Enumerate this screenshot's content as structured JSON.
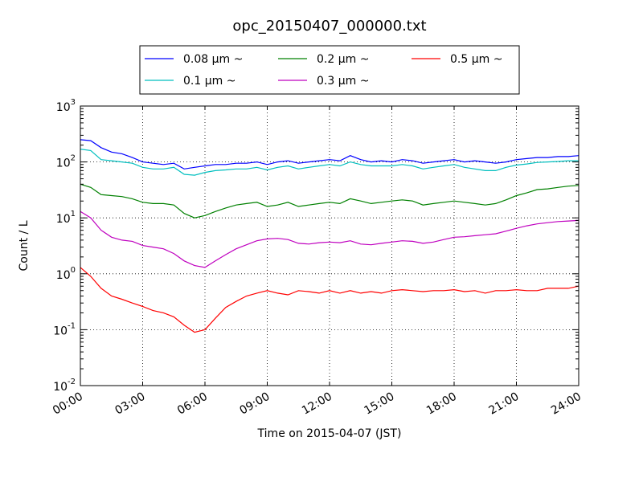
{
  "chart_data": {
    "type": "line",
    "title": "opc_20150407_000000.txt",
    "xlabel": "Time on 2015-04-07 (JST)",
    "ylabel": "Count / L",
    "yscale": "log",
    "ylim": [
      0.01,
      1000
    ],
    "xlim_hours": [
      0,
      24
    ],
    "x_ticks": [
      "00:00",
      "03:00",
      "06:00",
      "09:00",
      "12:00",
      "15:00",
      "18:00",
      "21:00",
      "24:00"
    ],
    "y_ticks": [
      {
        "base": "10",
        "exp": "-2"
      },
      {
        "base": "10",
        "exp": "-1"
      },
      {
        "base": "10",
        "exp": "0"
      },
      {
        "base": "10",
        "exp": "1"
      },
      {
        "base": "10",
        "exp": "2"
      },
      {
        "base": "10",
        "exp": "3"
      }
    ],
    "grid": true,
    "legend_position": "top-center",
    "x_hours": [
      0,
      0.5,
      1,
      1.5,
      2,
      2.5,
      3,
      3.5,
      4,
      4.5,
      5,
      5.5,
      6,
      6.5,
      7,
      7.5,
      8,
      8.5,
      9,
      9.5,
      10,
      10.5,
      11,
      11.5,
      12,
      12.5,
      13,
      13.5,
      14,
      14.5,
      15,
      15.5,
      16,
      16.5,
      17,
      17.5,
      18,
      18.5,
      19,
      19.5,
      20,
      20.5,
      21,
      21.5,
      22,
      22.5,
      23,
      23.5,
      24
    ],
    "series": [
      {
        "name": "0.08 μm ~",
        "color": "#0000ff",
        "values": [
          250,
          240,
          180,
          150,
          140,
          120,
          100,
          95,
          90,
          95,
          75,
          80,
          85,
          90,
          90,
          95,
          95,
          100,
          90,
          100,
          105,
          95,
          100,
          105,
          110,
          105,
          130,
          110,
          100,
          105,
          100,
          110,
          105,
          95,
          100,
          105,
          110,
          100,
          105,
          100,
          95,
          100,
          110,
          115,
          120,
          120,
          125,
          125,
          130
        ]
      },
      {
        "name": "0.1 μm ~",
        "color": "#00bfbf",
        "values": [
          170,
          160,
          110,
          105,
          100,
          95,
          80,
          75,
          75,
          80,
          60,
          58,
          65,
          70,
          72,
          75,
          75,
          80,
          72,
          80,
          85,
          75,
          80,
          85,
          90,
          85,
          100,
          90,
          85,
          85,
          85,
          90,
          85,
          75,
          80,
          85,
          90,
          80,
          75,
          70,
          70,
          80,
          88,
          92,
          98,
          100,
          102,
          105,
          105
        ]
      },
      {
        "name": "0.2 μm ~",
        "color": "#008000",
        "values": [
          40,
          35,
          26,
          25,
          24,
          22,
          19,
          18,
          18,
          17,
          12,
          10,
          11,
          13,
          15,
          17,
          18,
          19,
          16,
          17,
          19,
          16,
          17,
          18,
          19,
          18,
          22,
          20,
          18,
          19,
          20,
          21,
          20,
          17,
          18,
          19,
          20,
          19,
          18,
          17,
          18,
          21,
          25,
          28,
          32,
          33,
          35,
          37,
          38
        ]
      },
      {
        "name": "0.3 μm ~",
        "color": "#bf00bf",
        "values": [
          13,
          10,
          6,
          4.5,
          4,
          3.8,
          3.2,
          3,
          2.8,
          2.3,
          1.7,
          1.4,
          1.3,
          1.7,
          2.2,
          2.8,
          3.3,
          3.9,
          4.2,
          4.3,
          4.1,
          3.5,
          3.4,
          3.6,
          3.7,
          3.6,
          3.9,
          3.4,
          3.3,
          3.5,
          3.7,
          3.9,
          3.8,
          3.5,
          3.7,
          4.1,
          4.5,
          4.6,
          4.8,
          5,
          5.2,
          5.8,
          6.5,
          7.2,
          7.8,
          8.2,
          8.6,
          8.8,
          9
        ]
      },
      {
        "name": "0.5 μm ~",
        "color": "#ff0000",
        "values": [
          1.3,
          0.9,
          0.55,
          0.4,
          0.35,
          0.3,
          0.26,
          0.22,
          0.2,
          0.17,
          0.12,
          0.09,
          0.1,
          0.16,
          0.25,
          0.32,
          0.4,
          0.45,
          0.5,
          0.45,
          0.42,
          0.5,
          0.48,
          0.45,
          0.5,
          0.45,
          0.5,
          0.45,
          0.48,
          0.45,
          0.5,
          0.52,
          0.5,
          0.48,
          0.5,
          0.5,
          0.52,
          0.48,
          0.5,
          0.45,
          0.5,
          0.5,
          0.52,
          0.5,
          0.5,
          0.55,
          0.55,
          0.55,
          0.6
        ]
      }
    ]
  }
}
